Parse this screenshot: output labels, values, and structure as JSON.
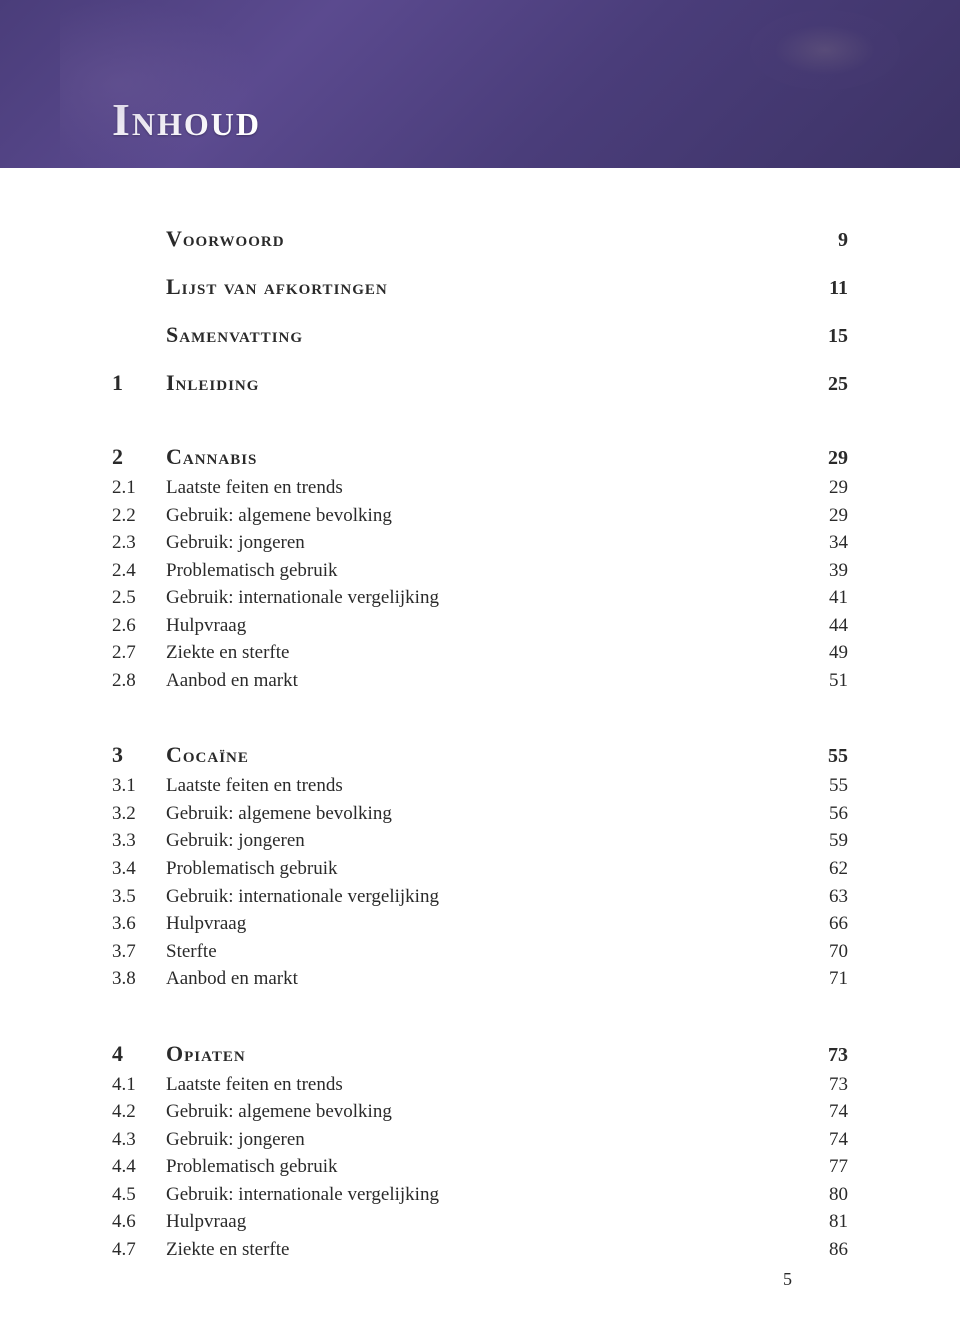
{
  "colors": {
    "banner_gradient_start": "#4a3d7a",
    "banner_gradient_mid": "#5b4a8f",
    "banner_gradient_end": "#3d3366",
    "title_color": "#ffffff",
    "text_color": "#2a2a2a",
    "page_bg": "#ffffff"
  },
  "typography": {
    "family": "Georgia / serif",
    "title_size": 46,
    "h1_size": 22,
    "body_size": 19
  },
  "banner": {
    "title": "Inhoud"
  },
  "front": [
    {
      "label": "Voorwoord",
      "page": "9"
    },
    {
      "label": "Lijst van afkortingen",
      "page": "11"
    },
    {
      "label": "Samenvatting",
      "page": "15"
    }
  ],
  "chapters": [
    {
      "num": "1",
      "title": "Inleiding",
      "page": "25",
      "sections": []
    },
    {
      "num": "2",
      "title": "Cannabis",
      "page": "29",
      "sections": [
        {
          "num": "2.1",
          "title": "Laatste feiten en trends",
          "page": "29"
        },
        {
          "num": "2.2",
          "title": "Gebruik: algemene bevolking",
          "page": "29"
        },
        {
          "num": "2.3",
          "title": "Gebruik: jongeren",
          "page": "34"
        },
        {
          "num": "2.4",
          "title": "Problematisch gebruik",
          "page": "39"
        },
        {
          "num": "2.5",
          "title": "Gebruik: internationale vergelijking",
          "page": "41"
        },
        {
          "num": "2.6",
          "title": "Hulpvraag",
          "page": "44"
        },
        {
          "num": "2.7",
          "title": "Ziekte en sterfte",
          "page": "49"
        },
        {
          "num": "2.8",
          "title": "Aanbod en markt",
          "page": "51"
        }
      ]
    },
    {
      "num": "3",
      "title": "Cocaïne",
      "page": "55",
      "sections": [
        {
          "num": "3.1",
          "title": "Laatste feiten en trends",
          "page": "55"
        },
        {
          "num": "3.2",
          "title": "Gebruik: algemene bevolking",
          "page": "56"
        },
        {
          "num": "3.3",
          "title": "Gebruik: jongeren",
          "page": "59"
        },
        {
          "num": "3.4",
          "title": "Problematisch gebruik",
          "page": "62"
        },
        {
          "num": "3.5",
          "title": "Gebruik: internationale vergelijking",
          "page": "63"
        },
        {
          "num": "3.6",
          "title": "Hulpvraag",
          "page": "66"
        },
        {
          "num": "3.7",
          "title": "Sterfte",
          "page": "70"
        },
        {
          "num": "3.8",
          "title": "Aanbod en markt",
          "page": "71"
        }
      ]
    },
    {
      "num": "4",
      "title": "Opiaten",
      "page": "73",
      "sections": [
        {
          "num": "4.1",
          "title": "Laatste feiten en trends",
          "page": "73"
        },
        {
          "num": "4.2",
          "title": "Gebruik: algemene bevolking",
          "page": "74"
        },
        {
          "num": "4.3",
          "title": "Gebruik: jongeren",
          "page": "74"
        },
        {
          "num": "4.4",
          "title": "Problematisch gebruik",
          "page": "77"
        },
        {
          "num": "4.5",
          "title": "Gebruik: internationale vergelijking",
          "page": "80"
        },
        {
          "num": "4.6",
          "title": "Hulpvraag",
          "page": "81"
        },
        {
          "num": "4.7",
          "title": "Ziekte en sterfte",
          "page": "86"
        }
      ]
    }
  ],
  "page_number": "5"
}
